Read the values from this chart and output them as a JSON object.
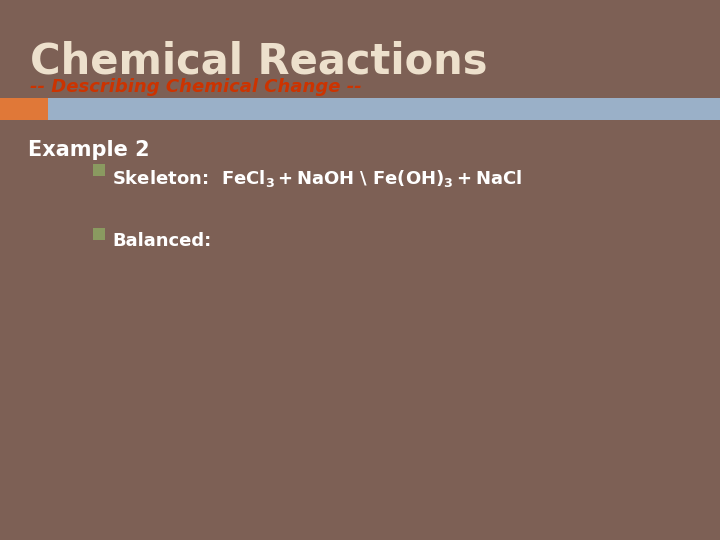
{
  "bg_color": "#7d6055",
  "title_text": "Chemical Reactions",
  "title_color": "#ede0cc",
  "subtitle_text": "-- Describing Chemical Change --",
  "subtitle_color": "#cc3300",
  "bar_orange_color": "#e07838",
  "bar_blue_color": "#9ab0c8",
  "example_color": "#ffffff",
  "bullet_color": "#8a9a60",
  "balanced_label": "Balanced:",
  "content_color": "#ffffff",
  "font_family": "DejaVu Sans"
}
